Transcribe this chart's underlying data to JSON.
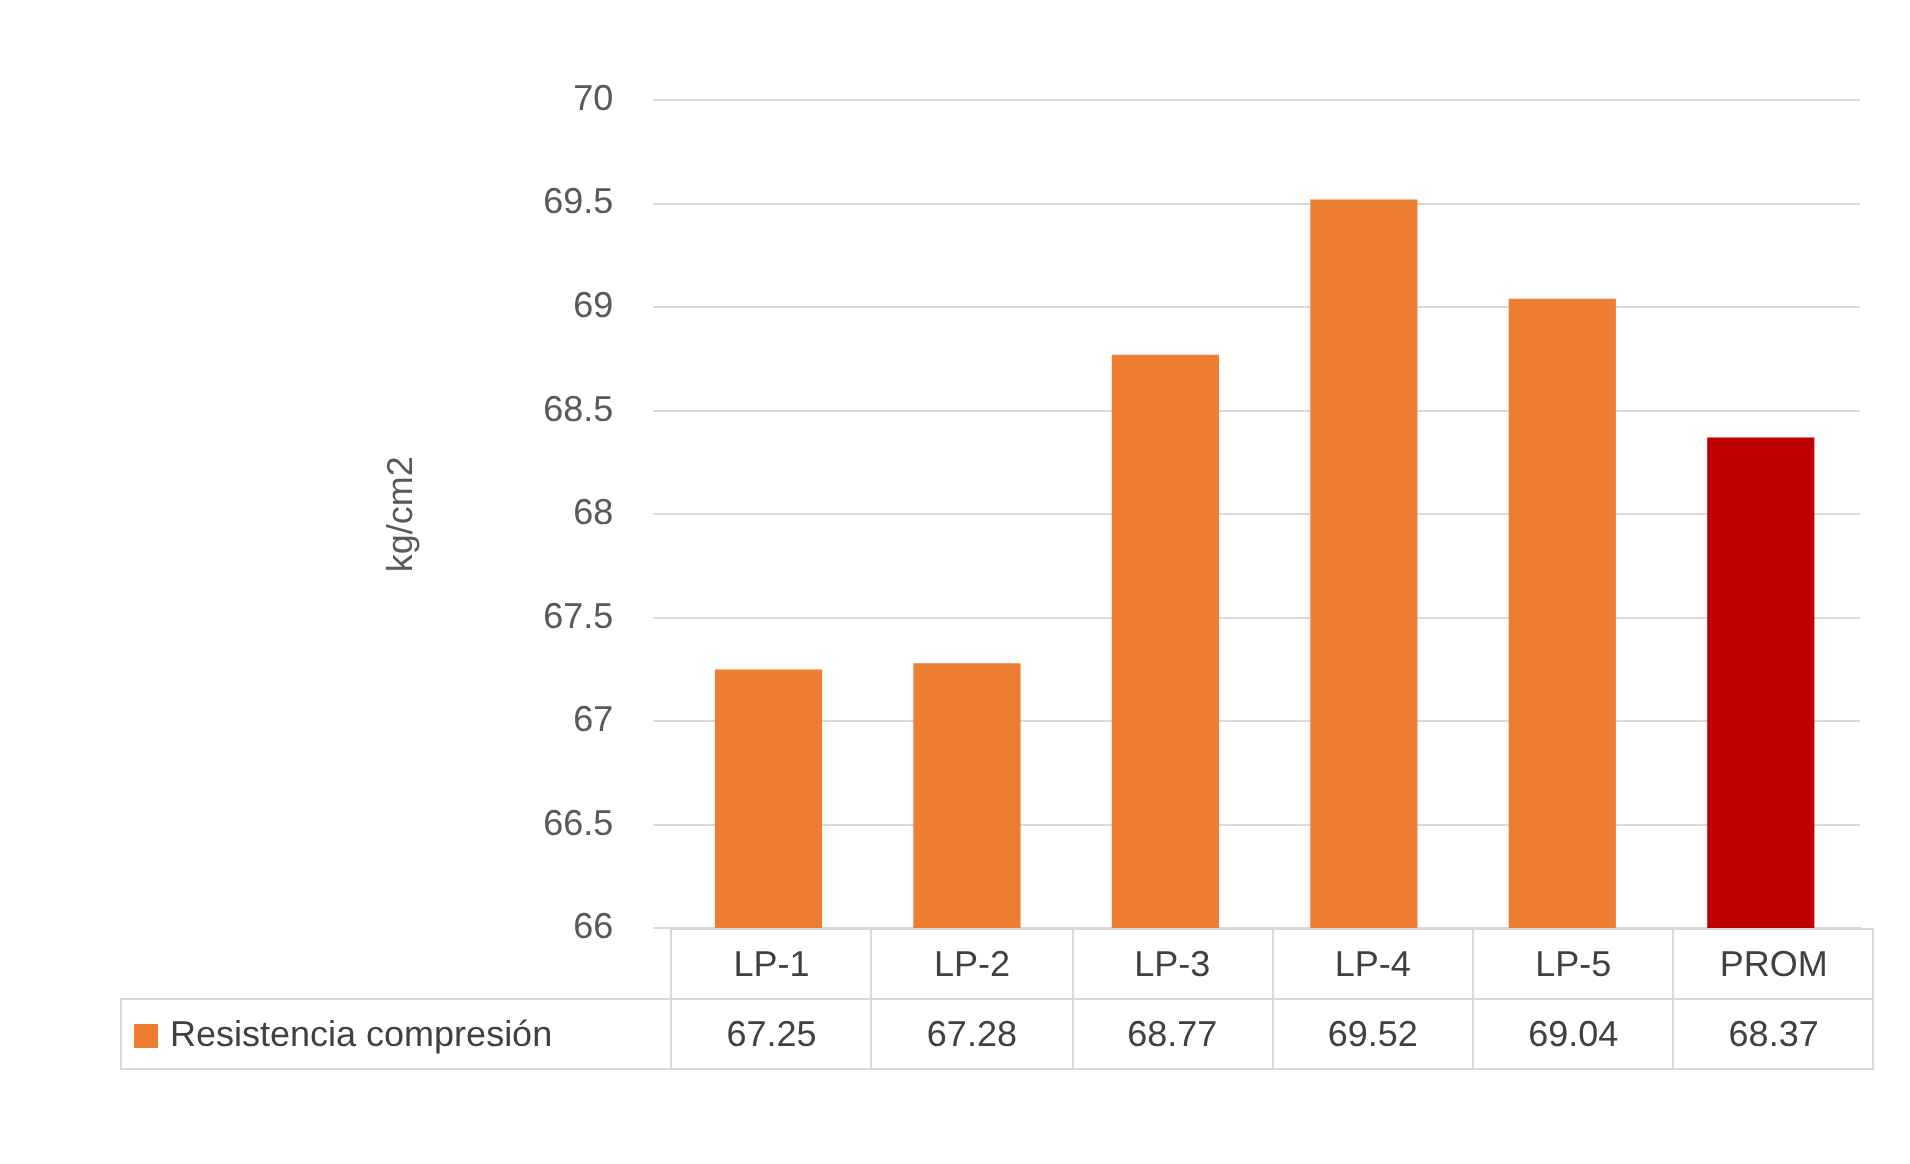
{
  "chart_data": {
    "type": "bar",
    "ylabel": "kg/cm2",
    "categories": [
      "LP-1",
      "LP-2",
      "LP-3",
      "LP-4",
      "LP-5",
      "PROM"
    ],
    "series": [
      {
        "name": "Resistencia compresión",
        "color": "#ed7d31",
        "colors": [
          "#ed7d31",
          "#ed7d31",
          "#ed7d31",
          "#ed7d31",
          "#ed7d31",
          "#c00000"
        ],
        "values": [
          67.25,
          67.28,
          68.77,
          69.52,
          69.04,
          68.37
        ]
      }
    ],
    "ylim": [
      66,
      70
    ],
    "yticks": [
      66,
      66.5,
      67,
      67.5,
      68,
      68.5,
      69,
      69.5,
      70
    ],
    "grid": "y",
    "legend": "bottom",
    "data_labels": true
  }
}
